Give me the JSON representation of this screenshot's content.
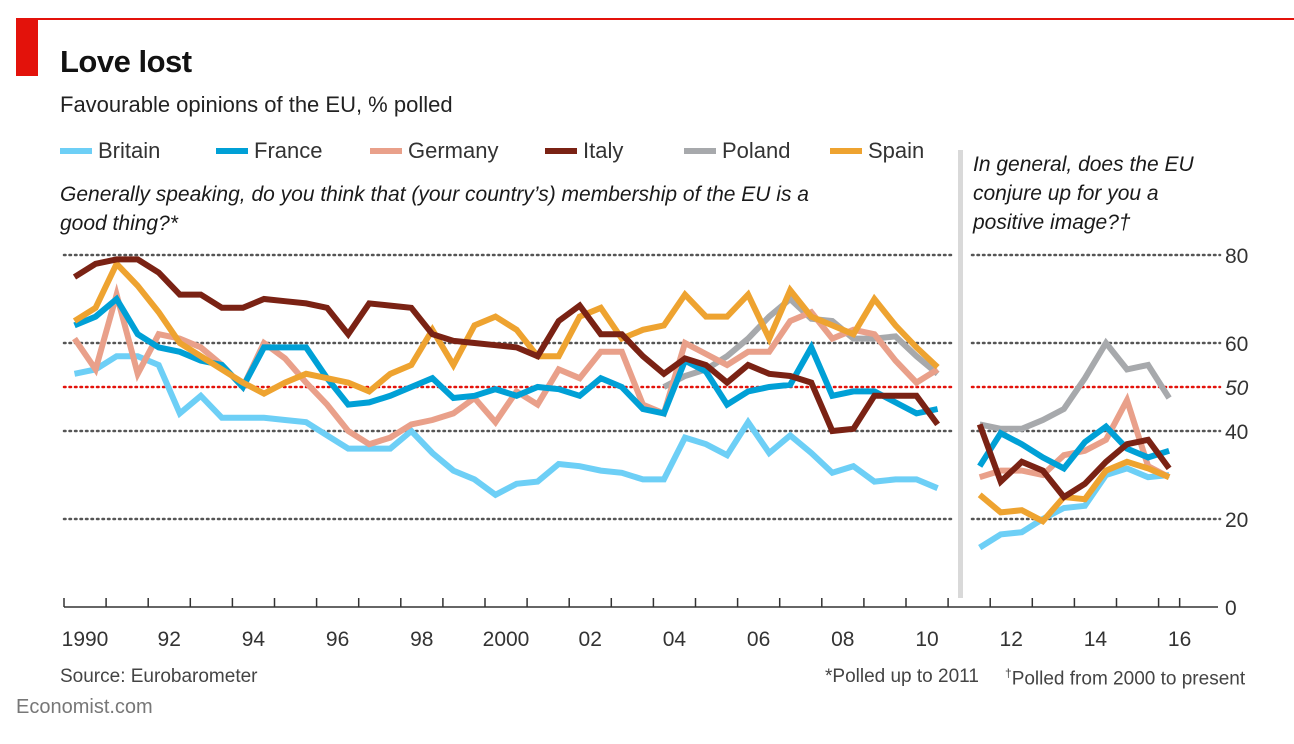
{
  "header": {
    "title": "Love lost",
    "subtitle": "Favourable opinions of the EU, % polled"
  },
  "legend": [
    {
      "name": "Britain",
      "color": "#6dcff6"
    },
    {
      "name": "France",
      "color": "#00a0d6"
    },
    {
      "name": "Germany",
      "color": "#e9a08a"
    },
    {
      "name": "Italy",
      "color": "#7a2214"
    },
    {
      "name": "Poland",
      "color": "#a7a9ac"
    },
    {
      "name": "Spain",
      "color": "#eea330"
    }
  ],
  "questions": {
    "left": "Generally speaking, do you think that (your country’s) membership of the EU is a good thing?*",
    "right": "In general, does the EU conjure up for you a positive image?†"
  },
  "footer": {
    "source": "Source: Eurobarometer",
    "brand": "Economist.com",
    "note1": "*Polled up to 2011",
    "note2_mark": "†",
    "note2": "Polled from 2000 to present"
  },
  "chart_data": [
    {
      "type": "line",
      "title": "Generally speaking, do you think that (your country’s) membership of the EU is a good thing?*",
      "ylabel": "% polled",
      "ylim": [
        0,
        80
      ],
      "yticks": [
        0,
        20,
        40,
        50,
        60,
        80
      ],
      "reference_line": 50,
      "grid": true,
      "x": [
        1990.25,
        1990.75,
        1991.25,
        1991.75,
        1992.25,
        1992.75,
        1993.25,
        1993.75,
        1994.25,
        1994.75,
        1995.25,
        1995.75,
        1996.25,
        1996.75,
        1997.25,
        1997.75,
        1998.25,
        1998.75,
        1999.25,
        1999.75,
        2000.25,
        2000.75,
        2001.25,
        2001.75,
        2002.25,
        2002.75,
        2003.25,
        2003.75,
        2004.25,
        2004.75,
        2005.25,
        2005.75,
        2006.25,
        2006.75,
        2007.25,
        2007.75,
        2008.25,
        2008.75,
        2009.25,
        2009.75,
        2010.25,
        2010.75
      ],
      "series": [
        {
          "name": "Britain",
          "values": [
            53,
            54,
            57,
            57,
            55,
            44,
            48,
            43,
            43,
            43,
            42.5,
            42,
            39,
            36,
            36,
            36,
            40,
            35,
            31,
            29,
            25.5,
            28,
            28.5,
            32.5,
            32,
            31,
            30.5,
            29,
            29,
            38.5,
            37,
            34.5,
            42,
            35,
            39,
            35,
            30.5,
            32,
            28.5,
            29,
            29,
            27
          ]
        },
        {
          "name": "France",
          "values": [
            64,
            66,
            70,
            62,
            59,
            58,
            56,
            55,
            50,
            59,
            59,
            59,
            52,
            46,
            46.5,
            48,
            50,
            52,
            47.5,
            48,
            49.5,
            48,
            50,
            49.5,
            48,
            52,
            50,
            45,
            44,
            56,
            53.5,
            46,
            49,
            50,
            50.5,
            59,
            48,
            49,
            49,
            46.5,
            44,
            45
          ]
        },
        {
          "name": "Germany",
          "values": [
            61,
            54,
            71,
            53,
            62,
            61,
            59,
            55,
            50,
            60,
            56.5,
            51,
            46,
            40,
            37,
            38.5,
            41.5,
            42.5,
            44,
            47.5,
            42,
            49,
            46,
            54,
            52,
            58,
            58,
            46,
            44,
            60,
            57.5,
            55,
            58,
            58,
            65,
            67,
            61,
            63,
            62,
            56,
            51,
            54
          ]
        },
        {
          "name": "Italy",
          "values": [
            75,
            78,
            79,
            79,
            76,
            71,
            71,
            68,
            68,
            70,
            69.5,
            69,
            68,
            62,
            69,
            68.5,
            68,
            62,
            60.5,
            60,
            59.5,
            59,
            57,
            65,
            68.5,
            62,
            62,
            57,
            53,
            56.5,
            55,
            51,
            55,
            53,
            52.5,
            51,
            40,
            40.5,
            48,
            48,
            48,
            41.5
          ]
        },
        {
          "name": "Poland",
          "values": [
            null,
            null,
            null,
            null,
            null,
            null,
            null,
            null,
            null,
            null,
            null,
            null,
            null,
            null,
            null,
            null,
            null,
            null,
            null,
            null,
            null,
            null,
            null,
            null,
            null,
            null,
            null,
            null,
            50,
            52.5,
            54,
            57,
            61,
            66,
            70,
            65.5,
            65,
            61,
            61,
            61.5,
            57,
            53
          ]
        },
        {
          "name": "Spain",
          "values": [
            65,
            68,
            78,
            73,
            67,
            60,
            57,
            54,
            51,
            48.5,
            51,
            53,
            52,
            51,
            49,
            53,
            55,
            63,
            55,
            64,
            66,
            63,
            57,
            57,
            66,
            68,
            61,
            63,
            64,
            71,
            66,
            66,
            71,
            61,
            72,
            66,
            64,
            62,
            70,
            64,
            59,
            54.5
          ]
        }
      ]
    },
    {
      "type": "line",
      "title": "In general, does the EU conjure up for you a positive image?†",
      "ylabel": "% polled",
      "ylim": [
        0,
        80
      ],
      "yticks": [
        0,
        20,
        40,
        50,
        60,
        80
      ],
      "reference_line": 50,
      "grid": true,
      "x": [
        2011.75,
        2012.25,
        2012.75,
        2013.25,
        2013.75,
        2014.25,
        2014.75,
        2015.25,
        2015.75,
        2016.25
      ],
      "series": [
        {
          "name": "Britain",
          "values": [
            13.5,
            16.5,
            17,
            20,
            22.5,
            23,
            30,
            31.5,
            29.5,
            30
          ]
        },
        {
          "name": "France",
          "values": [
            32,
            39.5,
            37,
            34,
            31.5,
            37.5,
            41,
            36,
            34,
            35.5
          ]
        },
        {
          "name": "Germany",
          "values": [
            29.5,
            31,
            31,
            30,
            34.5,
            35.5,
            38,
            47,
            32,
            29.5
          ]
        },
        {
          "name": "Italy",
          "values": [
            41.5,
            28.5,
            33,
            31,
            25,
            28,
            33,
            37,
            38,
            31.5
          ]
        },
        {
          "name": "Poland",
          "values": [
            41.5,
            40.5,
            40.5,
            42.5,
            45,
            52,
            60,
            54,
            55,
            47.5
          ]
        },
        {
          "name": "Spain",
          "values": [
            25.5,
            21.5,
            22,
            19.5,
            25,
            24.5,
            31,
            33,
            31.5,
            29.5
          ]
        }
      ]
    }
  ],
  "xaxis": {
    "tick_labels": [
      "1990",
      "92",
      "94",
      "96",
      "98",
      "2000",
      "02",
      "04",
      "06",
      "08",
      "10",
      "12",
      "14",
      "16"
    ],
    "tick_label_years": [
      1990,
      1992,
      1994,
      1996,
      1998,
      2000,
      2002,
      2004,
      2006,
      2008,
      2010,
      2012,
      2014,
      2016
    ]
  },
  "yaxis": {
    "tick_labels": [
      "80",
      "60",
      "50",
      "40",
      "20",
      "0"
    ],
    "tick_values": [
      80,
      60,
      50,
      40,
      20,
      0
    ],
    "highlight_value": 50,
    "highlight_color": "#e3120b"
  }
}
